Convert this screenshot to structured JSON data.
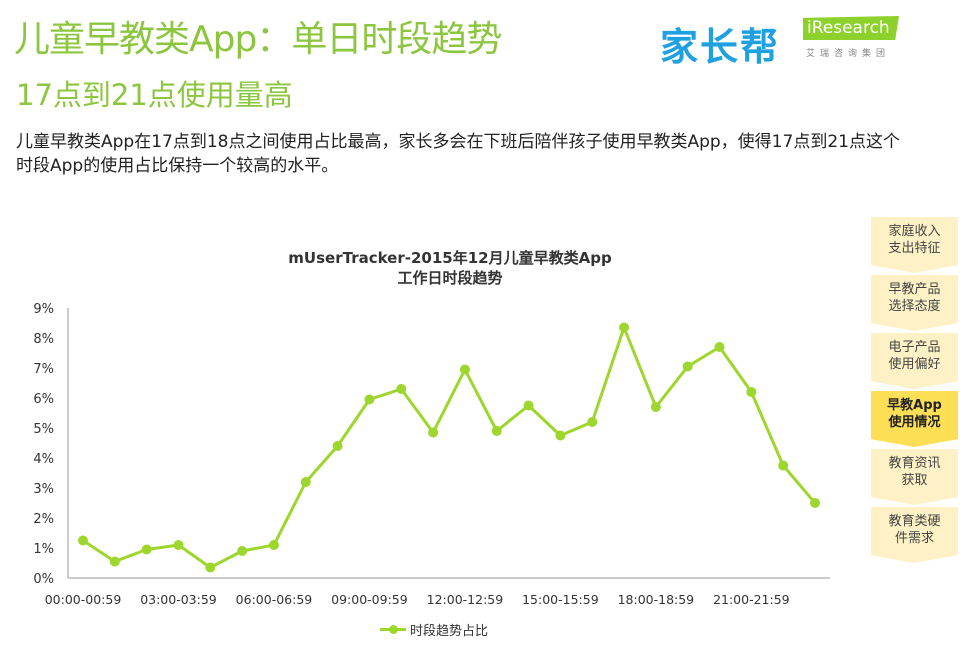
{
  "header": {
    "title": "儿童早教类App：单日时段趋势",
    "subtitle": "17点到21点使用量高",
    "description": "儿童早教类App在17点到18点之间使用占比最高，家长多会在下班后陪伴孩子使用早教类App，使得17点到21点这个时段App的使用占比保持一个较高的水平。",
    "logo_jiazhangbang": "家长帮",
    "logo_iresearch": "iResearch",
    "logo_iresearch_sub": "艾瑞咨询集团"
  },
  "sidebar": {
    "items": [
      {
        "label": "家庭收入\n支出特征",
        "active": false
      },
      {
        "label": "早教产品\n选择态度",
        "active": false
      },
      {
        "label": "电子产品\n使用偏好",
        "active": false
      },
      {
        "label": "早教App\n使用情况",
        "active": true
      },
      {
        "label": "教育资讯\n获取",
        "active": false
      },
      {
        "label": "教育类硬\n件需求",
        "active": false
      }
    ]
  },
  "colors": {
    "accent": "#8cc63f",
    "line": "#9dd62c",
    "active_tab": "#fddf55",
    "tab": "#fdf1c5"
  },
  "chart_data": {
    "type": "line",
    "title": "mUserTracker-2015年12月儿童早教类App",
    "subtitle": "工作日时段趋势",
    "x": [
      "00:00-00:59",
      "01:00-01:59",
      "02:00-02:59",
      "03:00-03:59",
      "04:00-04:59",
      "05:00-05:59",
      "06:00-06:59",
      "07:00-07:59",
      "08:00-08:59",
      "09:00-09:59",
      "10:00-10:59",
      "11:00-11:59",
      "12:00-12:59",
      "13:00-13:59",
      "14:00-14:59",
      "15:00-15:59",
      "16:00-16:59",
      "17:00-17:59",
      "18:00-18:59",
      "19:00-19:59",
      "20:00-20:59",
      "21:00-21:59",
      "22:00-22:59",
      "23:00-23:59"
    ],
    "xtick_labels": [
      "00:00-00:59",
      "03:00-03:59",
      "06:00-06:59",
      "09:00-09:59",
      "12:00-12:59",
      "15:00-15:59",
      "18:00-18:59",
      "21:00-21:59"
    ],
    "series": [
      {
        "name": "时段趋势占比",
        "values": [
          1.25,
          0.55,
          0.95,
          1.1,
          0.35,
          0.9,
          1.1,
          3.2,
          4.4,
          5.95,
          6.3,
          4.85,
          6.95,
          4.9,
          5.75,
          4.75,
          5.2,
          8.35,
          5.7,
          7.05,
          7.7,
          6.2,
          3.75,
          2.5
        ]
      }
    ],
    "yticks": [
      "0%",
      "1%",
      "2%",
      "3%",
      "4%",
      "5%",
      "6%",
      "7%",
      "8%",
      "9%"
    ],
    "ylim": [
      0,
      9
    ],
    "yunit": "%",
    "grid": false,
    "legend": "bottom"
  }
}
